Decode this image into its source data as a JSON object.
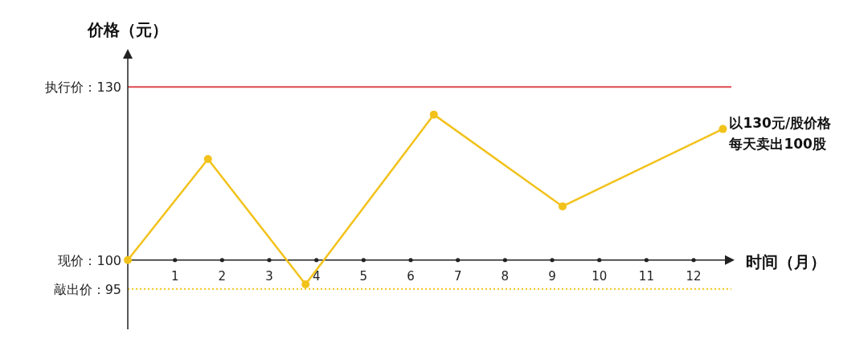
{
  "chart_data": {
    "type": "line",
    "ylabel": "价格（元）",
    "xlabel": "时间（月）",
    "x": [
      0,
      1.7,
      3.77,
      6.49,
      9.22,
      12.62
    ],
    "series": [
      {
        "color": "#f2c21b",
        "values": [
          100,
          117.5,
          95.8,
          125.2,
          109.3,
          122.7
        ]
      }
    ],
    "xlim": [
      0,
      12.8
    ],
    "xticks": [
      1,
      2,
      3,
      4,
      5,
      6,
      7,
      8,
      9,
      10,
      11,
      12
    ],
    "ylim": [
      88,
      136
    ],
    "yticks": [
      {
        "value": 100,
        "label": "现价：100"
      },
      {
        "value": 130,
        "label": "执行价：130"
      },
      {
        "value": 95,
        "label": "敲出价：95"
      }
    ],
    "ref_lines": [
      {
        "axis": "y",
        "value": 130,
        "color": "#e0474c",
        "line_style": "solid"
      },
      {
        "axis": "y",
        "value": 95,
        "color": "#f2c21b",
        "line_style": "dotted"
      }
    ],
    "annotations": [
      {
        "text": "以130元/股价格",
        "x": 12.62,
        "y": 122.7
      },
      "每天卖出100股"
    ],
    "marker": "circle",
    "grid": false
  }
}
